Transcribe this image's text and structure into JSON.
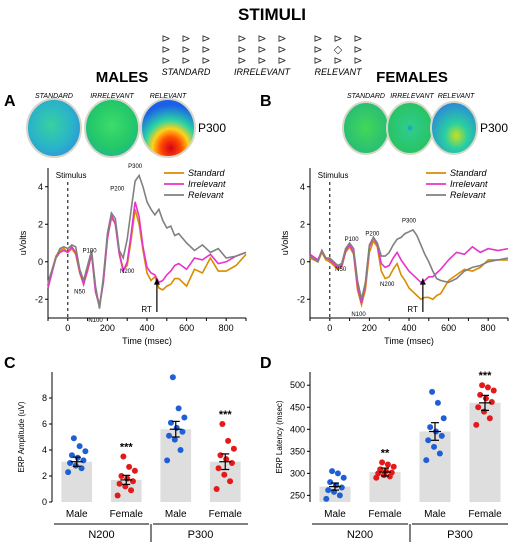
{
  "header": {
    "title": "STIMULI",
    "stimuli": [
      {
        "label": "STANDARD",
        "glyph": "⊳"
      },
      {
        "label": "IRRELEVANT",
        "glyph": "⊳"
      },
      {
        "label": "RELEVANT",
        "glyph": "◇"
      }
    ]
  },
  "panels": {
    "A": {
      "letter": "A",
      "group": "MALES"
    },
    "B": {
      "letter": "B",
      "group": "FEMALES"
    },
    "C": {
      "letter": "C"
    },
    "D": {
      "letter": "D"
    }
  },
  "topomaps": {
    "labels": [
      "STANDARD",
      "IRRELEVANT",
      "RELEVANT"
    ],
    "component": "P300"
  },
  "colors": {
    "standard": "#d98c00",
    "irrelevant": "#e633cc",
    "relevant": "#808080",
    "male_dot": "#1f5fd6",
    "female_dot": "#e31a1a",
    "bar": "#dedede"
  },
  "chart_data": [
    {
      "type": "line",
      "panel": "A",
      "title": "MALES",
      "xlabel": "Time (msec)",
      "ylabel": "uVolts",
      "xlim": [
        -100,
        900
      ],
      "ylim": [
        -3,
        5
      ],
      "xticks": [
        "0",
        "200",
        "400",
        "600",
        "800"
      ],
      "yticks": [
        "-2",
        "0",
        "2",
        "4"
      ],
      "stimulus_label": "Stimulus",
      "rt_label": "RT",
      "rt_x": 450,
      "legend_position": "top-right",
      "peak_labels": [
        {
          "text": "P100",
          "x": 110,
          "y": 0.5
        },
        {
          "text": "N50",
          "x": 60,
          "y": -1.7
        },
        {
          "text": "N100",
          "x": 140,
          "y": -3.2
        },
        {
          "text": "P200",
          "x": 250,
          "y": 3.8
        },
        {
          "text": "N200",
          "x": 300,
          "y": -0.6
        },
        {
          "text": "P300",
          "x": 340,
          "y": 5.0
        }
      ],
      "x": [
        -100,
        -60,
        -40,
        -20,
        0,
        20,
        40,
        60,
        80,
        100,
        120,
        140,
        160,
        180,
        200,
        220,
        240,
        260,
        280,
        300,
        320,
        340,
        360,
        380,
        400,
        420,
        440,
        460,
        480,
        500,
        520,
        540,
        560,
        600,
        640,
        680,
        720,
        760,
        800,
        850,
        900
      ],
      "series": [
        {
          "name": "Standard",
          "color_key": "standard",
          "values": [
            -1.2,
            0.3,
            0.6,
            0.7,
            0.5,
            0.7,
            0.4,
            -0.6,
            -1.2,
            -0.5,
            0.4,
            -1.5,
            -2.3,
            -1.0,
            1.3,
            2.3,
            2.1,
            0.5,
            -0.4,
            -0.2,
            1.2,
            2.8,
            2.0,
            0.6,
            -0.6,
            -1.0,
            -0.8,
            -1.4,
            -1.5,
            -1.3,
            -1.2,
            -0.9,
            -0.9,
            -1.3,
            -0.4,
            -0.6,
            0.2,
            -0.5,
            -0.5,
            -0.2,
            0.4
          ]
        },
        {
          "name": "Irrelevant",
          "color_key": "irrelevant",
          "values": [
            -1.4,
            0.2,
            0.5,
            0.6,
            0.5,
            0.8,
            0.5,
            -0.5,
            -1.2,
            -0.4,
            0.4,
            -1.6,
            -2.4,
            -1.1,
            1.2,
            2.5,
            2.0,
            0.4,
            -0.5,
            0.0,
            1.5,
            3.2,
            2.4,
            0.8,
            -0.3,
            -0.6,
            -0.7,
            -1.1,
            -1.0,
            -0.7,
            -0.5,
            -0.2,
            -0.1,
            -0.4,
            0.2,
            0.1,
            0.4,
            -0.1,
            0.0,
            0.3,
            0.5
          ]
        },
        {
          "name": "Relevant",
          "color_key": "relevant",
          "values": [
            -1.1,
            0.2,
            0.7,
            0.8,
            0.7,
            0.9,
            0.8,
            -0.4,
            -1.0,
            -0.2,
            0.6,
            -1.3,
            -2.5,
            -0.8,
            1.5,
            2.6,
            2.3,
            0.6,
            0.2,
            1.2,
            2.8,
            4.3,
            4.6,
            4.0,
            3.2,
            2.8,
            2.5,
            2.8,
            2.2,
            1.8,
            1.9,
            1.4,
            1.5,
            1.0,
            0.6,
            0.9,
            0.5,
            0.7,
            0.2,
            0.3,
            0.5
          ]
        }
      ]
    },
    {
      "type": "line",
      "panel": "B",
      "title": "FEMALES",
      "xlabel": "Time (msec)",
      "ylabel": "uVolts",
      "xlim": [
        -100,
        900
      ],
      "ylim": [
        -3,
        5
      ],
      "xticks": [
        "0",
        "200",
        "400",
        "600",
        "800"
      ],
      "yticks": [
        "-2",
        "0",
        "2",
        "4"
      ],
      "stimulus_label": "Stimulus",
      "rt_label": "RT",
      "rt_x": 470,
      "legend_position": "top-right",
      "peak_labels": [
        {
          "text": "P100",
          "x": 110,
          "y": 1.1
        },
        {
          "text": "N50",
          "x": 55,
          "y": -0.5
        },
        {
          "text": "N100",
          "x": 145,
          "y": -2.9
        },
        {
          "text": "P200",
          "x": 215,
          "y": 1.4
        },
        {
          "text": "N200",
          "x": 290,
          "y": -1.3
        },
        {
          "text": "P300",
          "x": 400,
          "y": 2.1
        }
      ],
      "x": [
        -100,
        -60,
        -40,
        -20,
        0,
        20,
        40,
        60,
        80,
        100,
        120,
        140,
        160,
        180,
        200,
        220,
        240,
        260,
        280,
        300,
        320,
        340,
        360,
        380,
        400,
        420,
        440,
        460,
        480,
        500,
        520,
        540,
        560,
        600,
        640,
        680,
        720,
        760,
        800,
        850,
        900
      ],
      "series": [
        {
          "name": "Standard",
          "color_key": "standard",
          "values": [
            0.2,
            0.0,
            0.5,
            0.1,
            0.0,
            -0.2,
            -0.4,
            -0.3,
            0.5,
            0.8,
            0.4,
            -1.5,
            -2.3,
            -1.5,
            0.5,
            1.1,
            0.8,
            -0.5,
            -0.9,
            -0.8,
            -0.4,
            -0.1,
            -0.7,
            -1.0,
            -1.4,
            -1.6,
            -1.8,
            -2.0,
            -1.9,
            -1.9,
            -2.0,
            -1.8,
            -1.7,
            -1.0,
            -0.7,
            -0.4,
            -0.5,
            -0.3,
            0.1,
            0.1,
            0.1
          ]
        },
        {
          "name": "Irrelevant",
          "color_key": "irrelevant",
          "values": [
            0.4,
            0.1,
            0.6,
            0.2,
            0.1,
            -0.1,
            -0.3,
            -0.2,
            0.6,
            0.9,
            0.5,
            -1.3,
            -2.2,
            -1.2,
            0.8,
            1.3,
            0.9,
            -0.1,
            -0.3,
            -0.2,
            0.2,
            0.5,
            0.1,
            -0.2,
            -0.5,
            -0.7,
            -0.9,
            -1.1,
            -1.0,
            -0.8,
            -0.8,
            -0.6,
            -0.4,
            0.1,
            0.5,
            0.4,
            0.8,
            0.5,
            0.7,
            0.6,
            0.7
          ]
        },
        {
          "name": "Relevant",
          "color_key": "relevant",
          "values": [
            0.3,
            0.0,
            0.6,
            0.2,
            0.2,
            0.0,
            -0.2,
            -0.1,
            0.7,
            1.0,
            0.7,
            -1.0,
            -2.0,
            -1.1,
            0.9,
            1.3,
            1.0,
            0.3,
            0.3,
            0.5,
            0.9,
            1.2,
            1.3,
            1.5,
            1.6,
            1.7,
            1.4,
            0.9,
            0.4,
            0.0,
            -0.5,
            -0.9,
            -1.0,
            -1.1,
            -0.9,
            -0.5,
            -0.3,
            -0.2,
            0.0,
            0.1,
            0.2
          ]
        }
      ]
    },
    {
      "type": "bar",
      "panel": "C",
      "ylabel": "ERP Amplitude (uV)",
      "ylim": [
        0,
        10
      ],
      "yticks": [
        "0",
        "2",
        "4",
        "6",
        "8"
      ],
      "categories": [
        "Male",
        "Female",
        "Male",
        "Female"
      ],
      "groups": [
        {
          "label": "N200",
          "span": [
            0,
            1
          ]
        },
        {
          "label": "P300",
          "span": [
            2,
            3
          ]
        }
      ],
      "values": [
        3.1,
        1.7,
        5.6,
        3.1
      ],
      "errors": [
        0.35,
        0.35,
        0.6,
        0.6
      ],
      "significance": [
        "",
        "***",
        "",
        "***"
      ],
      "points": [
        [
          2.3,
          2.6,
          2.8,
          3.0,
          3.2,
          3.4,
          3.6,
          3.9,
          4.3,
          4.9
        ],
        [
          0.5,
          0.9,
          1.2,
          1.4,
          1.6,
          1.8,
          2.0,
          2.4,
          2.7,
          3.5
        ],
        [
          3.2,
          4.0,
          4.8,
          5.1,
          5.4,
          5.7,
          6.1,
          6.5,
          7.2,
          9.6
        ],
        [
          1.0,
          1.6,
          2.1,
          2.6,
          3.0,
          3.3,
          3.6,
          4.1,
          4.7,
          6.0
        ]
      ]
    },
    {
      "type": "bar",
      "panel": "D",
      "ylabel": "ERP Latency (msec)",
      "ylim": [
        235,
        530
      ],
      "yticks": [
        "250",
        "300",
        "350",
        "400",
        "450",
        "500"
      ],
      "categories": [
        "Male",
        "Female",
        "Male",
        "Female"
      ],
      "groups": [
        {
          "label": "N200",
          "span": [
            0,
            1
          ]
        },
        {
          "label": "P300",
          "span": [
            2,
            3
          ]
        }
      ],
      "values": [
        270,
        303,
        395,
        460
      ],
      "errors": [
        8,
        9,
        20,
        17
      ],
      "significance": [
        "",
        "**",
        "",
        "***"
      ],
      "points": [
        [
          242,
          250,
          258,
          262,
          268,
          273,
          280,
          290,
          300,
          305
        ],
        [
          290,
          293,
          296,
          300,
          302,
          305,
          309,
          315,
          320,
          325
        ],
        [
          330,
          345,
          360,
          375,
          385,
          395,
          405,
          425,
          460,
          485
        ],
        [
          410,
          425,
          440,
          450,
          462,
          470,
          478,
          488,
          495,
          500
        ]
      ]
    }
  ]
}
